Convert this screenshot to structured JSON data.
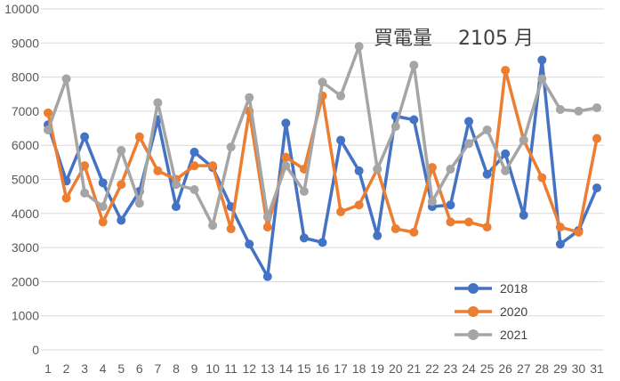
{
  "chart_data": {
    "type": "line",
    "title": "買電量　 2105 月",
    "xlabel": "",
    "ylabel": "",
    "ylim": [
      0,
      10000
    ],
    "yticks": [
      0,
      1000,
      2000,
      3000,
      4000,
      5000,
      6000,
      7000,
      8000,
      9000,
      10000
    ],
    "categories": [
      "1",
      "2",
      "3",
      "4",
      "5",
      "6",
      "7",
      "8",
      "9",
      "10",
      "11",
      "12",
      "13",
      "14",
      "15",
      "16",
      "17",
      "18",
      "19",
      "20",
      "21",
      "22",
      "23",
      "24",
      "25",
      "26",
      "27",
      "28",
      "29",
      "30",
      "31"
    ],
    "grid": true,
    "legend_position": "bottom-right",
    "series": [
      {
        "name": "2018",
        "color": "#4472C4",
        "values": [
          6600,
          4950,
          6250,
          4900,
          3800,
          4650,
          6750,
          4200,
          5800,
          5350,
          4200,
          3100,
          2150,
          6650,
          3280,
          3150,
          6150,
          5250,
          3350,
          6850,
          6750,
          4200,
          4250,
          6700,
          5150,
          5750,
          3950,
          8500,
          3100,
          3500,
          4750
        ]
      },
      {
        "name": "2020",
        "color": "#ED7D31",
        "values": [
          6950,
          4450,
          5400,
          3750,
          4850,
          6250,
          5250,
          5000,
          5400,
          5400,
          3550,
          7000,
          3600,
          5650,
          5300,
          7450,
          4050,
          4250,
          5300,
          3550,
          3450,
          5350,
          3750,
          3750,
          3600,
          8200,
          6150,
          5050,
          3600,
          3450,
          6200
        ]
      },
      {
        "name": "2021",
        "color": "#A5A5A5",
        "values": [
          6450,
          7950,
          4600,
          4200,
          5850,
          4300,
          7250,
          4850,
          4700,
          3650,
          5950,
          7400,
          3900,
          5400,
          4650,
          7850,
          7450,
          8900,
          5300,
          6550,
          8350,
          4350,
          5300,
          6050,
          6450,
          5250,
          6150,
          7950,
          7050,
          7000,
          7100
        ]
      }
    ]
  }
}
